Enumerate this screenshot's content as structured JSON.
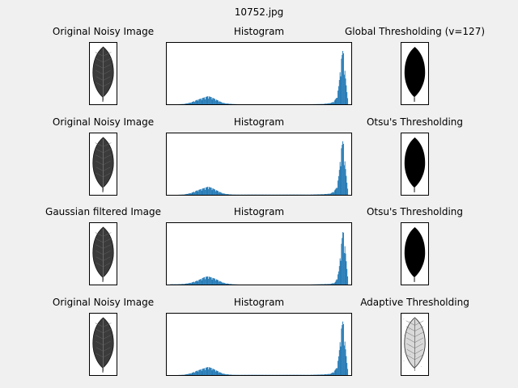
{
  "figure": {
    "title": "10752.jpg"
  },
  "rows": [
    {
      "left_title": "Original Noisy Image",
      "mid_title": "Histogram",
      "right_title": "Global Thresholding (v=127)",
      "left_image": "leaf-gray",
      "right_image": "leaf-black"
    },
    {
      "left_title": "Original Noisy Image",
      "mid_title": "Histogram",
      "right_title": "Otsu's Thresholding",
      "left_image": "leaf-gray",
      "right_image": "leaf-black"
    },
    {
      "left_title": "Gaussian filtered Image",
      "mid_title": "Histogram",
      "right_title": "Otsu's Thresholding",
      "left_image": "leaf-gray",
      "right_image": "leaf-black"
    },
    {
      "left_title": "Original Noisy Image",
      "mid_title": "Histogram",
      "right_title": "Adaptive Thresholding",
      "left_image": "leaf-gray",
      "right_image": "leaf-outline"
    }
  ],
  "colors": {
    "bar": "#1f77b4",
    "background": "#f0f0f0",
    "panel": "#ffffff"
  },
  "chart_data": [
    {
      "type": "bar",
      "title": "Histogram",
      "xlim": [
        0,
        256
      ],
      "x": [
        10,
        20,
        30,
        40,
        50,
        55,
        60,
        65,
        70,
        75,
        80,
        90,
        100,
        120,
        150,
        180,
        200,
        220,
        230,
        235,
        240,
        243,
        246,
        249,
        252,
        255
      ],
      "values": [
        0,
        0.005,
        0.03,
        0.08,
        0.12,
        0.14,
        0.12,
        0.09,
        0.06,
        0.03,
        0.015,
        0.004,
        0,
        0,
        0,
        0,
        0,
        0.005,
        0.02,
        0.04,
        0.12,
        0.35,
        0.75,
        0.95,
        0.5,
        0.15
      ],
      "grid": false
    },
    {
      "type": "bar",
      "title": "Histogram",
      "xlim": [
        0,
        256
      ],
      "x": [
        10,
        20,
        30,
        40,
        50,
        55,
        60,
        65,
        70,
        75,
        80,
        90,
        100,
        120,
        150,
        180,
        200,
        220,
        230,
        235,
        240,
        243,
        246,
        249,
        252,
        255
      ],
      "values": [
        0,
        0.005,
        0.03,
        0.08,
        0.12,
        0.14,
        0.12,
        0.09,
        0.06,
        0.03,
        0.015,
        0.004,
        0.003,
        0.004,
        0.003,
        0.004,
        0.003,
        0.01,
        0.02,
        0.05,
        0.13,
        0.36,
        0.77,
        0.95,
        0.5,
        0.15
      ],
      "grid": false
    },
    {
      "type": "bar",
      "title": "Histogram",
      "xlim": [
        0,
        256
      ],
      "x": [
        10,
        20,
        30,
        40,
        45,
        50,
        55,
        60,
        65,
        70,
        75,
        80,
        90,
        100,
        150,
        200,
        230,
        237,
        240,
        243,
        246,
        249,
        252,
        255
      ],
      "values": [
        0.005,
        0.01,
        0.03,
        0.07,
        0.1,
        0.13,
        0.14,
        0.12,
        0.1,
        0.07,
        0.04,
        0.02,
        0.005,
        0,
        0,
        0,
        0.01,
        0.03,
        0.1,
        0.25,
        0.65,
        0.95,
        0.6,
        0.2
      ],
      "grid": false
    },
    {
      "type": "bar",
      "title": "Histogram",
      "xlim": [
        0,
        256
      ],
      "x": [
        10,
        20,
        30,
        40,
        50,
        55,
        60,
        65,
        70,
        75,
        80,
        90,
        100,
        120,
        150,
        180,
        200,
        220,
        230,
        235,
        240,
        243,
        246,
        249,
        252,
        255
      ],
      "values": [
        0,
        0.005,
        0.03,
        0.08,
        0.12,
        0.14,
        0.12,
        0.09,
        0.06,
        0.03,
        0.015,
        0.004,
        0.003,
        0.004,
        0.003,
        0.004,
        0.003,
        0.01,
        0.02,
        0.05,
        0.13,
        0.36,
        0.77,
        0.95,
        0.5,
        0.15
      ],
      "grid": false
    }
  ]
}
